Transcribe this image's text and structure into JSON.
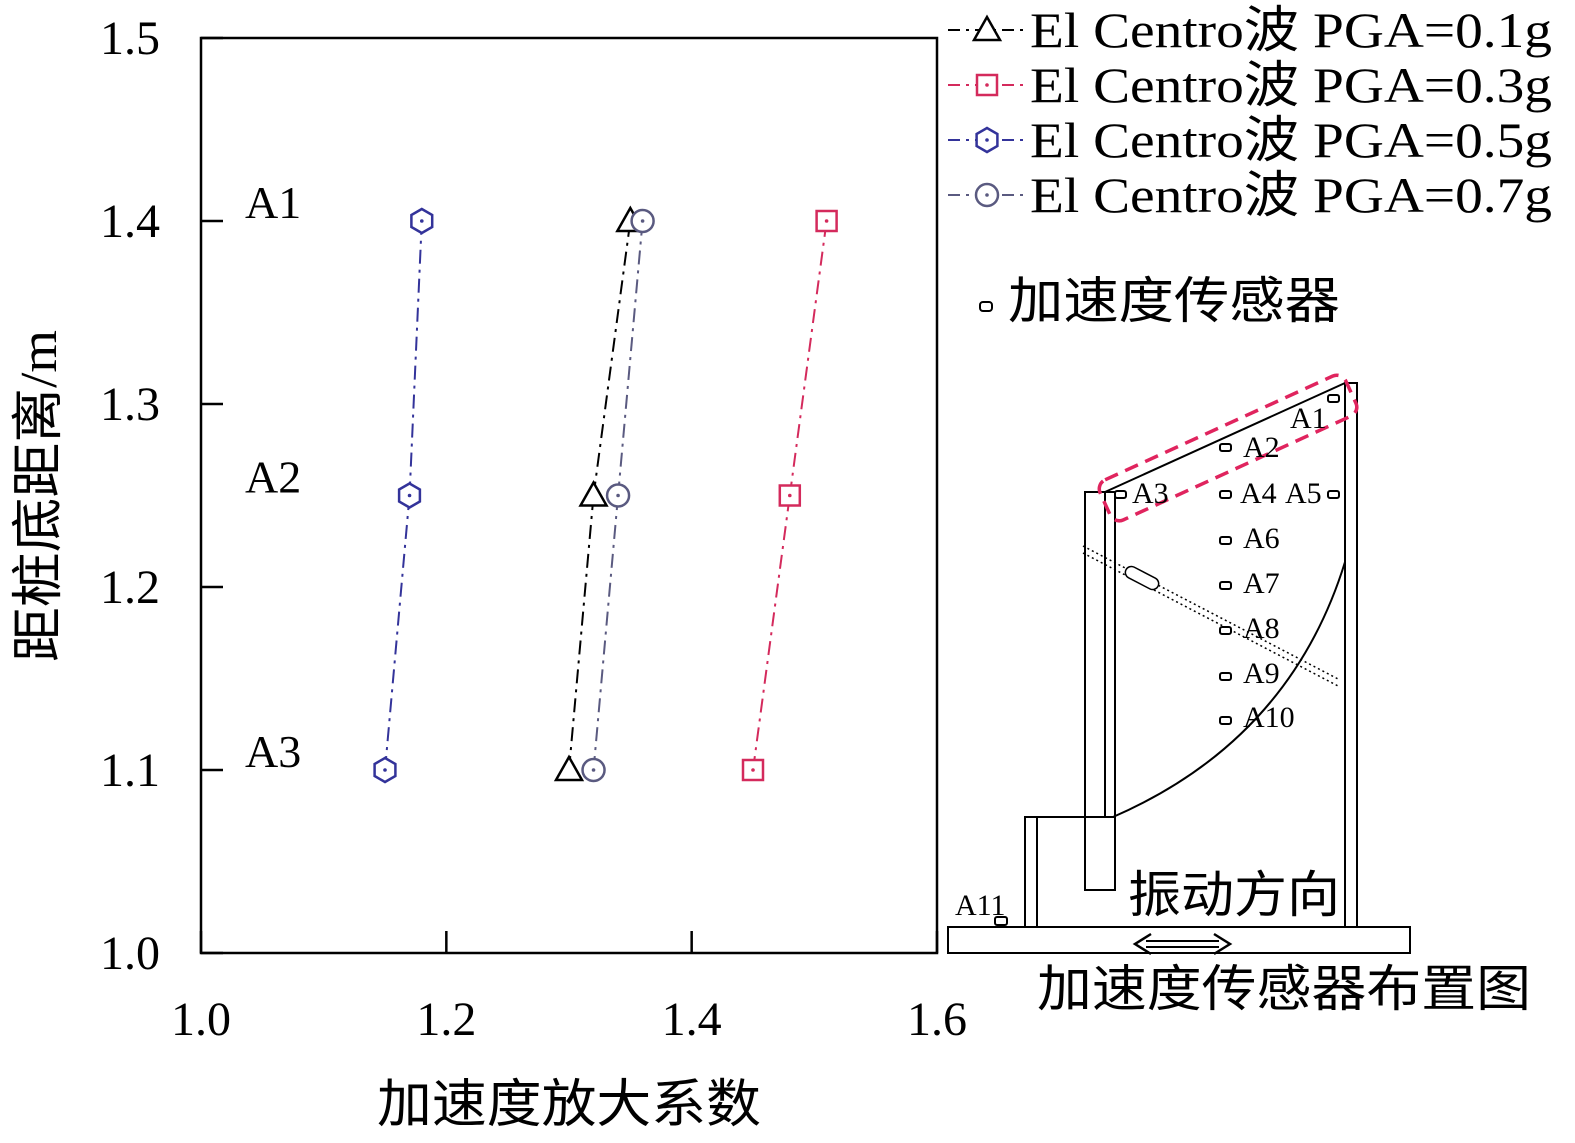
{
  "chart_data": {
    "type": "line",
    "xlabel": "加速度放大系数",
    "ylabel": "距桩底距离/m",
    "xlim": [
      1.0,
      1.6
    ],
    "ylim": [
      1.0,
      1.5
    ],
    "xticks": [
      "1.0",
      "1.2",
      "1.4",
      "1.6"
    ],
    "yticks": [
      "1.0",
      "1.1",
      "1.2",
      "1.3",
      "1.4",
      "1.5"
    ],
    "grid": false,
    "legend_position": "top-right",
    "series": [
      {
        "name": "El Centro波 PGA=0.1g",
        "marker": "triangle",
        "line_style": "dash-dot",
        "color": "#000000",
        "points": [
          {
            "x": 1.3,
            "y": 1.1
          },
          {
            "x": 1.32,
            "y": 1.25
          },
          {
            "x": 1.35,
            "y": 1.4
          }
        ]
      },
      {
        "name": "El Centro波 PGA=0.3g",
        "marker": "square",
        "line_style": "dash-dot",
        "color": "#d42a5c",
        "points": [
          {
            "x": 1.45,
            "y": 1.1
          },
          {
            "x": 1.48,
            "y": 1.25
          },
          {
            "x": 1.51,
            "y": 1.4
          }
        ]
      },
      {
        "name": "El Centro波 PGA=0.5g",
        "marker": "hexagon",
        "line_style": "dash-dot",
        "color": "#33339a",
        "points": [
          {
            "x": 1.15,
            "y": 1.1
          },
          {
            "x": 1.17,
            "y": 1.25
          },
          {
            "x": 1.18,
            "y": 1.4
          }
        ]
      },
      {
        "name": "El Centro波 PGA=0.7g",
        "marker": "circle",
        "line_style": "dash-dot",
        "color": "#5a5a80",
        "points": [
          {
            "x": 1.32,
            "y": 1.1
          },
          {
            "x": 1.34,
            "y": 1.25
          },
          {
            "x": 1.36,
            "y": 1.4
          }
        ]
      }
    ],
    "annotations": [
      {
        "text": "A1",
        "y": 1.4
      },
      {
        "text": "A2",
        "y": 1.25
      },
      {
        "text": "A3",
        "y": 1.1
      }
    ]
  },
  "diagram": {
    "legend_label": "加速度传感器",
    "sensor_labels": [
      "A1",
      "A2",
      "A3",
      "A4",
      "A5",
      "A6",
      "A7",
      "A8",
      "A9",
      "A10",
      "A11"
    ],
    "direction_label": "振动方向",
    "caption": "加速度传感器布置图",
    "highlight_color": "#e0245e"
  }
}
